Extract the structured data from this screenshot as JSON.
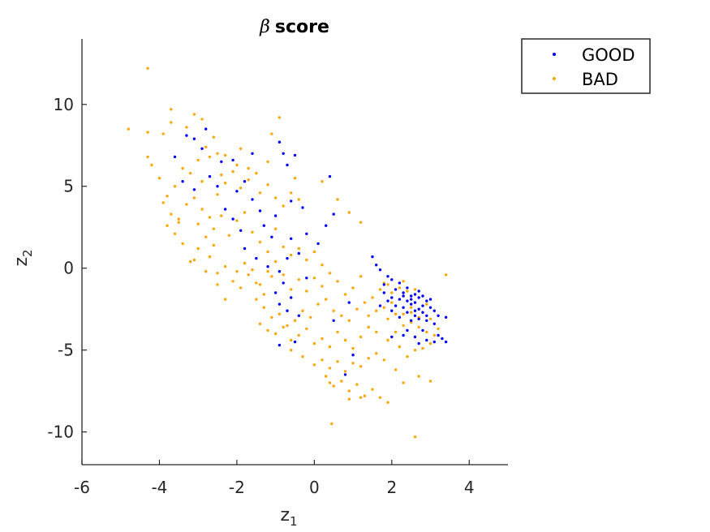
{
  "chart_data": {
    "type": "scatter",
    "title_symbol": "β",
    "title_text": "score",
    "xlabel": "z",
    "xlabel_sub": "1",
    "ylabel": "z",
    "ylabel_sub": "2",
    "xlim": [
      -6,
      5
    ],
    "ylim": [
      -12,
      14
    ],
    "xticks": [
      -6,
      -4,
      -2,
      0,
      2,
      4
    ],
    "yticks": [
      -10,
      -5,
      0,
      5,
      10
    ],
    "grid": false,
    "legend_position": "top-right-outside",
    "series": [
      {
        "name": "GOOD",
        "color": "#0000ff",
        "points": [
          [
            -3.6,
            6.8
          ],
          [
            -3.3,
            8.1
          ],
          [
            -3.1,
            7.9
          ],
          [
            -2.8,
            8.5
          ],
          [
            -2.9,
            7.3
          ],
          [
            -2.4,
            6.5
          ],
          [
            -2.1,
            6.6
          ],
          [
            -1.6,
            7.0
          ],
          [
            -0.9,
            7.7
          ],
          [
            -0.8,
            7.0
          ],
          [
            -0.5,
            6.9
          ],
          [
            -0.7,
            6.3
          ],
          [
            0.4,
            5.6
          ],
          [
            -3.4,
            5.3
          ],
          [
            -3.1,
            4.8
          ],
          [
            -2.7,
            5.6
          ],
          [
            -2.5,
            5.0
          ],
          [
            -2.0,
            4.7
          ],
          [
            -1.8,
            5.3
          ],
          [
            -1.6,
            4.2
          ],
          [
            -1.4,
            3.5
          ],
          [
            -1.0,
            3.2
          ],
          [
            -0.6,
            4.1
          ],
          [
            -0.3,
            3.7
          ],
          [
            0.3,
            2.6
          ],
          [
            0.5,
            3.3
          ],
          [
            -2.3,
            3.6
          ],
          [
            -2.1,
            3.0
          ],
          [
            -1.9,
            2.3
          ],
          [
            -1.3,
            2.6
          ],
          [
            -1.1,
            1.9
          ],
          [
            -0.6,
            1.8
          ],
          [
            -0.2,
            2.1
          ],
          [
            0.1,
            1.5
          ],
          [
            -1.8,
            1.2
          ],
          [
            -1.5,
            0.6
          ],
          [
            -1.2,
            0.1
          ],
          [
            -0.9,
            -0.2
          ],
          [
            -0.7,
            0.6
          ],
          [
            -0.4,
            0.9
          ],
          [
            -0.2,
            -0.6
          ],
          [
            -0.8,
            -0.9
          ],
          [
            -1.0,
            -1.5
          ],
          [
            -0.6,
            -1.8
          ],
          [
            -0.9,
            -2.2
          ],
          [
            -0.7,
            -2.6
          ],
          [
            -0.4,
            -2.9
          ],
          [
            -0.9,
            -4.7
          ],
          [
            -0.5,
            -4.5
          ],
          [
            0.8,
            -6.5
          ],
          [
            1.0,
            -5.3
          ],
          [
            0.5,
            -3.2
          ],
          [
            0.9,
            -2.1
          ],
          [
            1.5,
            0.7
          ],
          [
            1.6,
            0.2
          ],
          [
            1.7,
            -0.1
          ],
          [
            1.9,
            -0.5
          ],
          [
            1.8,
            -1.0
          ],
          [
            2.0,
            -0.7
          ],
          [
            2.2,
            -0.9
          ],
          [
            2.1,
            -1.3
          ],
          [
            2.3,
            -1.5
          ],
          [
            2.4,
            -1.2
          ],
          [
            2.5,
            -1.7
          ],
          [
            2.2,
            -1.9
          ],
          [
            2.4,
            -2.0
          ],
          [
            2.6,
            -1.6
          ],
          [
            2.7,
            -1.8
          ],
          [
            2.5,
            -2.2
          ],
          [
            2.3,
            -2.4
          ],
          [
            2.6,
            -2.1
          ],
          [
            2.8,
            -2.3
          ],
          [
            2.9,
            -2.0
          ],
          [
            2.7,
            -2.5
          ],
          [
            2.8,
            -2.7
          ],
          [
            3.0,
            -2.4
          ],
          [
            2.6,
            -2.6
          ],
          [
            2.9,
            -2.9
          ],
          [
            3.1,
            -2.6
          ],
          [
            2.4,
            -2.7
          ],
          [
            2.7,
            -1.4
          ],
          [
            2.5,
            -1.9
          ],
          [
            2.8,
            -1.7
          ],
          [
            3.0,
            -1.9
          ],
          [
            2.3,
            -1.7
          ],
          [
            2.6,
            -2.9
          ],
          [
            2.9,
            -3.2
          ],
          [
            3.1,
            -3.4
          ],
          [
            2.7,
            -3.1
          ],
          [
            2.5,
            -3.2
          ],
          [
            2.4,
            -3.8
          ],
          [
            2.8,
            -3.8
          ],
          [
            2.6,
            -4.2
          ],
          [
            2.9,
            -4.4
          ],
          [
            3.2,
            -4.1
          ],
          [
            3.1,
            -4.5
          ],
          [
            3.3,
            -4.3
          ],
          [
            3.4,
            -4.5
          ],
          [
            2.7,
            -4.6
          ],
          [
            2.0,
            -1.8
          ],
          [
            1.9,
            -2.0
          ],
          [
            2.2,
            -3.0
          ],
          [
            2.1,
            -2.3
          ],
          [
            1.8,
            -1.5
          ],
          [
            3.4,
            -3.0
          ],
          [
            3.2,
            -2.9
          ],
          [
            2.0,
            -4.2
          ],
          [
            2.3,
            -4.1
          ],
          [
            1.7,
            -2.3
          ],
          [
            2.0,
            -2.6
          ]
        ]
      },
      {
        "name": "BAD",
        "color": "#ffa500",
        "points": [
          [
            -4.3,
            12.2
          ],
          [
            -4.8,
            8.5
          ],
          [
            -4.3,
            8.3
          ],
          [
            -3.9,
            8.2
          ],
          [
            -3.7,
            9.7
          ],
          [
            -3.7,
            8.9
          ],
          [
            -3.1,
            9.4
          ],
          [
            -2.9,
            9.1
          ],
          [
            -3.3,
            8.6
          ],
          [
            -2.6,
            8.0
          ],
          [
            -4.3,
            6.8
          ],
          [
            -4.2,
            6.3
          ],
          [
            -4.0,
            5.5
          ],
          [
            -3.8,
            4.4
          ],
          [
            -3.6,
            5.0
          ],
          [
            -3.4,
            6.1
          ],
          [
            -3.2,
            5.8
          ],
          [
            -3.0,
            6.6
          ],
          [
            -2.8,
            7.4
          ],
          [
            -2.7,
            6.8
          ],
          [
            -2.5,
            7.0
          ],
          [
            -3.9,
            4.0
          ],
          [
            -3.7,
            3.3
          ],
          [
            -3.5,
            2.8
          ],
          [
            -3.3,
            3.9
          ],
          [
            -3.1,
            4.3
          ],
          [
            -2.9,
            3.6
          ],
          [
            -2.7,
            3.1
          ],
          [
            -2.5,
            4.5
          ],
          [
            -2.3,
            5.2
          ],
          [
            -2.1,
            5.9
          ],
          [
            -1.9,
            4.9
          ],
          [
            -1.7,
            5.4
          ],
          [
            -1.4,
            4.6
          ],
          [
            -1.2,
            5.1
          ],
          [
            -1.0,
            4.3
          ],
          [
            -0.8,
            3.8
          ],
          [
            -0.6,
            4.6
          ],
          [
            -0.4,
            4.2
          ],
          [
            -3.6,
            2.1
          ],
          [
            -3.4,
            1.5
          ],
          [
            -3.2,
            0.4
          ],
          [
            -3.0,
            2.7
          ],
          [
            -2.8,
            1.9
          ],
          [
            -2.6,
            2.4
          ],
          [
            -2.4,
            3.2
          ],
          [
            -2.2,
            2.0
          ],
          [
            -2.0,
            2.9
          ],
          [
            -1.8,
            3.4
          ],
          [
            -1.6,
            2.2
          ],
          [
            -1.4,
            1.6
          ],
          [
            -1.2,
            1.0
          ],
          [
            -1.0,
            2.4
          ],
          [
            -0.8,
            1.3
          ],
          [
            -0.6,
            0.8
          ],
          [
            -0.4,
            1.2
          ],
          [
            -0.2,
            0.5
          ],
          [
            0.0,
            1.0
          ],
          [
            0.2,
            0.2
          ],
          [
            -3.0,
            1.2
          ],
          [
            -2.7,
            0.7
          ],
          [
            -2.5,
            -0.3
          ],
          [
            -2.3,
            0.1
          ],
          [
            -2.1,
            -0.8
          ],
          [
            -1.9,
            -1.2
          ],
          [
            -1.7,
            -0.4
          ],
          [
            -1.5,
            -0.9
          ],
          [
            -1.3,
            -1.6
          ],
          [
            -1.1,
            -0.5
          ],
          [
            -2.5,
            -1.0
          ],
          [
            -2.3,
            -1.9
          ],
          [
            -2.0,
            -0.2
          ],
          [
            -1.8,
            0.3
          ],
          [
            -1.6,
            -0.1
          ],
          [
            -1.4,
            -1.0
          ],
          [
            -1.2,
            -0.2
          ],
          [
            -1.0,
            0.4
          ],
          [
            -0.8,
            -0.4
          ],
          [
            -0.6,
            -1.3
          ],
          [
            -0.4,
            -0.7
          ],
          [
            -0.2,
            -1.4
          ],
          [
            0.0,
            -0.6
          ],
          [
            0.2,
            -1.1
          ],
          [
            0.4,
            -0.3
          ],
          [
            0.6,
            -0.8
          ],
          [
            0.8,
            -1.6
          ],
          [
            1.0,
            -1.2
          ],
          [
            1.2,
            -0.5
          ],
          [
            -1.5,
            -1.9
          ],
          [
            -1.3,
            -2.4
          ],
          [
            -1.1,
            -3.0
          ],
          [
            -0.9,
            -2.8
          ],
          [
            -0.7,
            -3.5
          ],
          [
            -0.5,
            -3.2
          ],
          [
            -0.3,
            -2.6
          ],
          [
            -0.1,
            -3.0
          ],
          [
            0.1,
            -2.2
          ],
          [
            0.3,
            -1.9
          ],
          [
            0.5,
            -2.6
          ],
          [
            0.7,
            -2.9
          ],
          [
            0.9,
            -3.2
          ],
          [
            1.1,
            -2.5
          ],
          [
            1.3,
            -2.1
          ],
          [
            1.5,
            -1.8
          ],
          [
            1.7,
            -1.3
          ],
          [
            1.9,
            -1.0
          ],
          [
            -1.4,
            -3.4
          ],
          [
            -1.2,
            -3.8
          ],
          [
            -1.0,
            -4.0
          ],
          [
            -0.8,
            -3.6
          ],
          [
            -0.6,
            -4.4
          ],
          [
            -0.4,
            -4.1
          ],
          [
            -0.2,
            -3.7
          ],
          [
            0.0,
            -4.6
          ],
          [
            0.2,
            -4.3
          ],
          [
            0.4,
            -4.8
          ],
          [
            0.6,
            -3.9
          ],
          [
            0.8,
            -4.4
          ],
          [
            1.0,
            -4.9
          ],
          [
            1.2,
            -4.2
          ],
          [
            1.4,
            -3.6
          ],
          [
            1.6,
            -3.9
          ],
          [
            -0.6,
            -5.0
          ],
          [
            -0.3,
            -5.4
          ],
          [
            0.0,
            -5.9
          ],
          [
            0.2,
            -5.6
          ],
          [
            0.4,
            -6.1
          ],
          [
            0.6,
            -5.7
          ],
          [
            0.8,
            -6.3
          ],
          [
            1.0,
            -5.8
          ],
          [
            1.2,
            -6.0
          ],
          [
            1.4,
            -5.5
          ],
          [
            1.6,
            -5.2
          ],
          [
            1.8,
            -5.6
          ],
          [
            0.3,
            -6.6
          ],
          [
            0.5,
            -7.2
          ],
          [
            0.7,
            -6.9
          ],
          [
            0.9,
            -7.5
          ],
          [
            1.1,
            -7.1
          ],
          [
            1.3,
            -7.8
          ],
          [
            1.5,
            -7.4
          ],
          [
            1.7,
            -7.9
          ],
          [
            1.9,
            -8.2
          ],
          [
            0.9,
            -8.0
          ],
          [
            1.2,
            -7.9
          ],
          [
            0.4,
            -7.0
          ],
          [
            0.45,
            -9.5
          ],
          [
            2.6,
            -10.3
          ],
          [
            2.3,
            -7.0
          ],
          [
            2.7,
            -6.6
          ],
          [
            3.0,
            -6.9
          ],
          [
            2.1,
            -6.2
          ],
          [
            1.9,
            -4.4
          ],
          [
            2.1,
            -3.9
          ],
          [
            2.3,
            -3.5
          ],
          [
            2.5,
            -3.3
          ],
          [
            2.7,
            -3.6
          ],
          [
            2.9,
            -3.9
          ],
          [
            3.1,
            -4.1
          ],
          [
            2.2,
            -4.8
          ],
          [
            2.4,
            -5.4
          ],
          [
            2.6,
            -5.0
          ],
          [
            2.8,
            -4.9
          ],
          [
            3.0,
            -4.6
          ],
          [
            1.9,
            -3.1
          ],
          [
            2.1,
            -2.8
          ],
          [
            1.8,
            -2.4
          ],
          [
            2.0,
            -2.1
          ],
          [
            1.6,
            -2.6
          ],
          [
            1.4,
            -2.9
          ],
          [
            2.2,
            -1.2
          ],
          [
            2.4,
            -1.4
          ],
          [
            2.6,
            -1.3
          ],
          [
            2.3,
            -0.8
          ],
          [
            2.0,
            -1.5
          ],
          [
            1.8,
            -0.9
          ],
          [
            2.5,
            -2.4
          ],
          [
            2.3,
            -2.8
          ],
          [
            2.7,
            -3.0
          ],
          [
            2.5,
            -2.7
          ],
          [
            3.4,
            -0.4
          ],
          [
            3.0,
            -3.1
          ],
          [
            2.9,
            -2.2
          ],
          [
            3.2,
            -3.7
          ],
          [
            -3.1,
            0.5
          ],
          [
            -2.8,
            -0.2
          ],
          [
            -2.6,
            1.4
          ],
          [
            -3.5,
            3.0
          ],
          [
            -3.8,
            2.6
          ],
          [
            -2.9,
            5.3
          ],
          [
            -2.4,
            5.7
          ],
          [
            -2.0,
            6.3
          ],
          [
            -1.7,
            6.1
          ],
          [
            -1.5,
            5.8
          ],
          [
            -1.2,
            6.5
          ],
          [
            -1.9,
            7.3
          ],
          [
            -2.3,
            6.9
          ],
          [
            -0.9,
            9.2
          ],
          [
            -0.5,
            5.5
          ],
          [
            -1.1,
            8.2
          ],
          [
            0.2,
            5.3
          ],
          [
            0.6,
            4.2
          ],
          [
            0.9,
            3.4
          ],
          [
            1.2,
            2.8
          ]
        ]
      }
    ]
  }
}
